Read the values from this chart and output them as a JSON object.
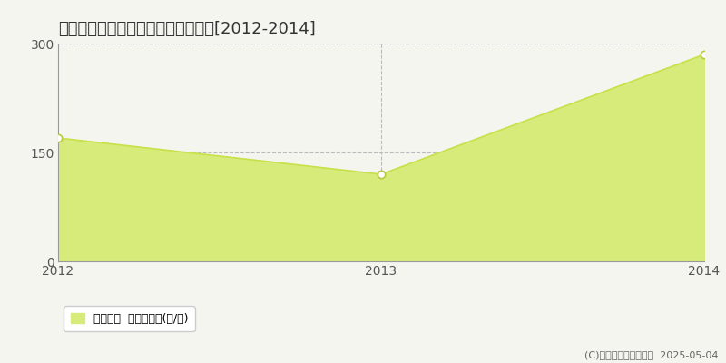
{
  "title": "鹿足郡津和野町部栄　林地価格推移[2012-2014]",
  "years": [
    2012,
    2013,
    2014
  ],
  "values": [
    170,
    120,
    285
  ],
  "ylim": [
    0,
    300
  ],
  "yticks": [
    0,
    150,
    300
  ],
  "line_color": "#c8e04a",
  "fill_color": "#d6eb7a",
  "fill_alpha": 1.0,
  "marker_color": "white",
  "marker_edge_color": "#b8c840",
  "marker_size": 6,
  "grid_color": "#bbbbbb",
  "background_color": "#f5f5f0",
  "legend_label": "林地価格  平均坪単価(円/坪)",
  "copyright_text": "(C)土地価格ドットコム  2025-05-04",
  "title_fontsize": 13,
  "tick_fontsize": 10,
  "legend_fontsize": 9,
  "copyright_fontsize": 8
}
